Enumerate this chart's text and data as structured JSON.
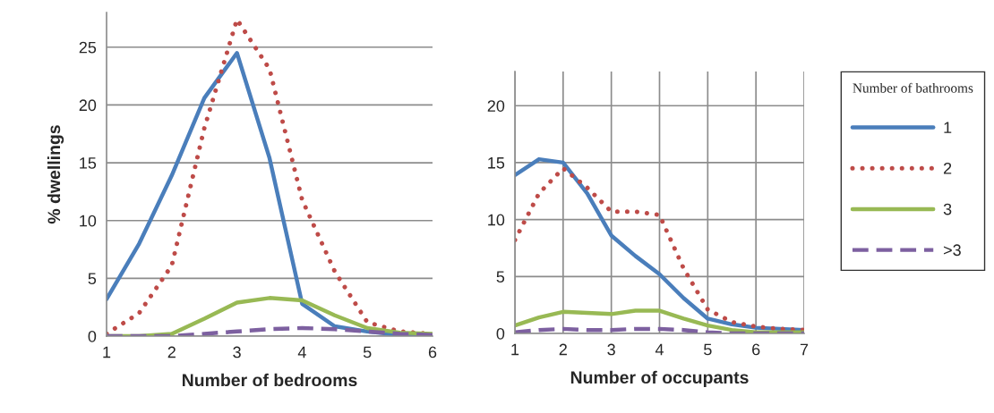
{
  "chart_data": [
    {
      "type": "line",
      "xlabel": "Number of bedrooms",
      "ylabel": "% dwellings",
      "x": [
        1,
        1.5,
        2,
        2.5,
        3,
        3.5,
        4,
        4.5,
        5,
        5.5,
        6
      ],
      "xlim": [
        1,
        6
      ],
      "xticks": [
        1,
        2,
        3,
        4,
        5,
        6
      ],
      "ylim": [
        0,
        28
      ],
      "yticks": [
        0,
        5,
        10,
        15,
        20,
        25
      ],
      "grid": "y",
      "series": [
        {
          "color": "#4a7ebb",
          "line_style": "solid",
          "values": [
            3.2,
            8.0,
            13.9,
            20.6,
            24.5,
            15.4,
            2.8,
            0.85,
            0.4,
            0.1,
            0
          ]
        },
        {
          "color": "#be4b48",
          "line_style": "dotted",
          "values": [
            0.2,
            2.0,
            6.1,
            18.0,
            27.4,
            23.1,
            11.8,
            5.6,
            1.2,
            0.4,
            0.2
          ]
        },
        {
          "color": "#98b954",
          "line_style": "solid",
          "values": [
            0,
            0,
            0.2,
            1.5,
            2.9,
            3.3,
            3.1,
            1.8,
            0.7,
            0.3,
            0.2
          ]
        },
        {
          "color": "#7d60a0",
          "line_style": "dashed",
          "values": [
            0,
            0,
            0,
            0.2,
            0.4,
            0.6,
            0.7,
            0.6,
            0.4,
            0.2,
            0.1
          ]
        }
      ]
    },
    {
      "type": "line",
      "xlabel": "Number of occupants",
      "x": [
        1,
        1.5,
        2,
        2.5,
        3,
        3.5,
        4,
        4.5,
        5,
        5.5,
        6,
        6.5,
        7
      ],
      "xlim": [
        1,
        7
      ],
      "xticks": [
        1,
        2,
        3,
        4,
        5,
        6,
        7
      ],
      "ylim": [
        0,
        23
      ],
      "yticks": [
        0,
        5,
        10,
        15,
        20
      ],
      "grid": true,
      "legend": "right",
      "legend_title": "Number of bathrooms",
      "series": [
        {
          "name": "1",
          "color": "#4a7ebb",
          "line_style": "solid",
          "values": [
            13.9,
            15.3,
            15.0,
            12.3,
            8.6,
            6.8,
            5.2,
            3.1,
            1.3,
            0.8,
            0.5,
            0.4,
            0.3
          ]
        },
        {
          "name": "2",
          "color": "#be4b48",
          "line_style": "dotted",
          "values": [
            8.2,
            12.3,
            14.5,
            12.8,
            10.7,
            10.7,
            10.4,
            5.7,
            2.1,
            1.0,
            0.6,
            0.4,
            0.3
          ]
        },
        {
          "name": "3",
          "color": "#98b954",
          "line_style": "solid",
          "values": [
            0.7,
            1.4,
            1.9,
            1.8,
            1.7,
            2.0,
            2.0,
            1.3,
            0.7,
            0.3,
            0.1,
            0.1,
            0.1
          ]
        },
        {
          "name": ">3",
          "color": "#7d60a0",
          "line_style": "dashed",
          "values": [
            0.1,
            0.3,
            0.4,
            0.3,
            0.3,
            0.4,
            0.4,
            0.3,
            0.1,
            0,
            0,
            0,
            0
          ]
        }
      ]
    }
  ]
}
